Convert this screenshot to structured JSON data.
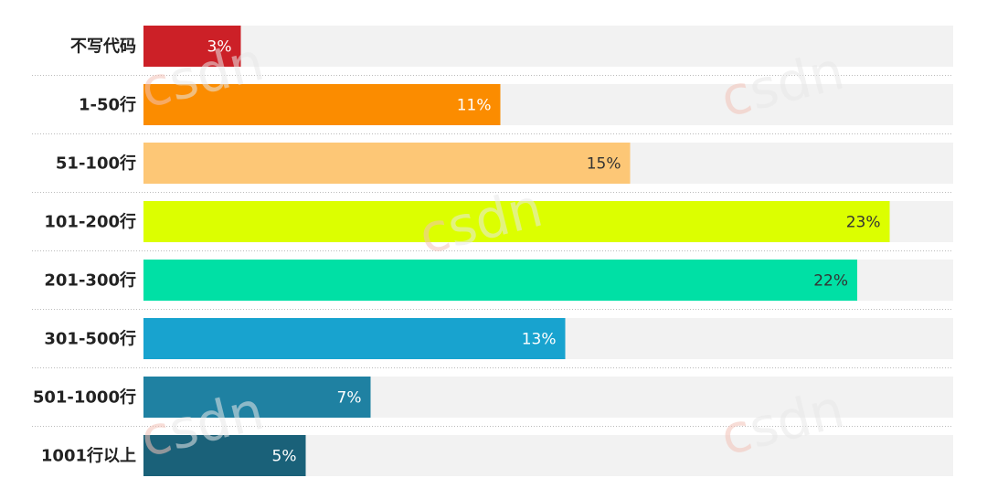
{
  "chart_data": {
    "type": "bar",
    "orientation": "horizontal",
    "categories": [
      "不写代码",
      "1-50行",
      "51-100行",
      "101-200行",
      "201-300行",
      "301-500行",
      "501-1000行",
      "1001行以上"
    ],
    "values": [
      3,
      11,
      15,
      23,
      22,
      13,
      7,
      5
    ],
    "value_labels": [
      "3%",
      "11%",
      "15%",
      "23%",
      "22%",
      "13%",
      "7%",
      "5%"
    ],
    "colors": [
      "#cc2027",
      "#fb8c00",
      "#fdc776",
      "#dcff00",
      "#00e0a5",
      "#18a3cf",
      "#1f81a2",
      "#1a6179"
    ],
    "label_colors": [
      "#ffffff",
      "#ffffff",
      "#333333",
      "#333333",
      "#333333",
      "#ffffff",
      "#ffffff",
      "#ffffff"
    ],
    "track_color": "#f2f2f2",
    "xlim": [
      0,
      25
    ],
    "grid": false,
    "title": "",
    "xlabel": "",
    "ylabel": ""
  }
}
